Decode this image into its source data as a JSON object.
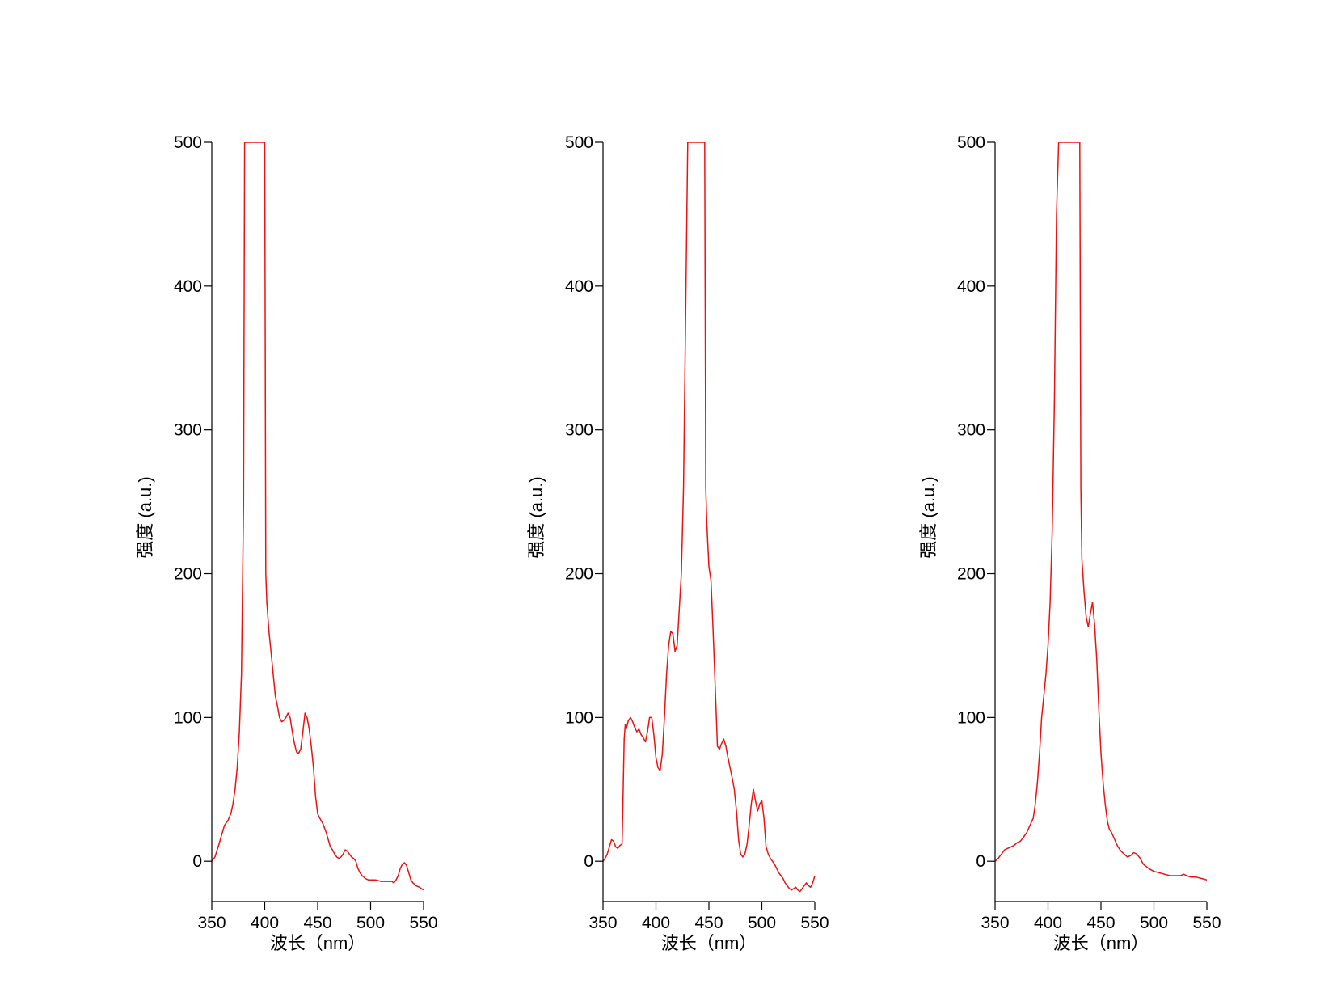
{
  "chart_data": [
    {
      "type": "line",
      "xlabel": "波长（nm）",
      "ylabel": "强度 (a.u.)",
      "xlim": [
        350,
        550
      ],
      "ylim": [
        -28,
        500
      ],
      "xticks": [
        350,
        400,
        450,
        500,
        550
      ],
      "yticks": [
        0,
        100,
        200,
        300,
        400,
        500
      ],
      "grid": false,
      "colors": {
        "line": "#ee1111"
      },
      "series": [
        {
          "x": [
            350,
            353,
            356,
            358,
            360,
            362,
            365,
            368,
            370,
            372,
            374,
            376,
            378,
            380,
            381,
            382,
            384,
            386,
            388,
            390,
            392,
            394,
            396,
            398,
            400,
            401,
            402,
            404,
            406,
            408,
            410,
            412,
            414,
            416,
            418,
            420,
            422,
            424,
            426,
            428,
            430,
            432,
            434,
            436,
            438,
            440,
            442,
            444,
            446,
            448,
            450,
            452,
            455,
            458,
            460,
            462,
            464,
            466,
            468,
            470,
            472,
            474,
            476,
            478,
            480,
            482,
            484,
            486,
            488,
            490,
            492,
            495,
            498,
            500,
            505,
            510,
            515,
            520,
            522,
            524,
            526,
            528,
            530,
            532,
            534,
            536,
            538,
            540,
            543,
            546,
            550
          ],
          "y": [
            0,
            3,
            10,
            15,
            20,
            25,
            28,
            33,
            40,
            50,
            65,
            90,
            130,
            250,
            500,
            500,
            500,
            500,
            500,
            500,
            500,
            500,
            500,
            500,
            500,
            200,
            180,
            160,
            145,
            130,
            115,
            108,
            100,
            97,
            98,
            100,
            103,
            100,
            90,
            82,
            76,
            75,
            78,
            90,
            103,
            100,
            92,
            80,
            65,
            45,
            33,
            30,
            26,
            20,
            15,
            10,
            8,
            5,
            3,
            2,
            3,
            5,
            8,
            7,
            5,
            3,
            2,
            0,
            -5,
            -8,
            -10,
            -12,
            -13,
            -13,
            -13,
            -14,
            -14,
            -14,
            -15,
            -13,
            -10,
            -5,
            -2,
            -1,
            -3,
            -8,
            -13,
            -15,
            -17,
            -18,
            -20
          ]
        }
      ]
    },
    {
      "type": "line",
      "xlabel": "波长（nm）",
      "ylabel": "强度 (a.u.)",
      "xlim": [
        350,
        550
      ],
      "ylim": [
        -28,
        500
      ],
      "xticks": [
        350,
        400,
        450,
        500,
        550
      ],
      "yticks": [
        0,
        100,
        200,
        300,
        400,
        500
      ],
      "grid": false,
      "colors": {
        "line": "#ee1111"
      },
      "series": [
        {
          "x": [
            350,
            352,
            354,
            356,
            358,
            360,
            362,
            364,
            366,
            368,
            370,
            371,
            372,
            374,
            376,
            378,
            380,
            382,
            384,
            386,
            388,
            390,
            392,
            394,
            396,
            398,
            400,
            402,
            404,
            406,
            408,
            410,
            412,
            414,
            416,
            418,
            420,
            422,
            424,
            426,
            428,
            430,
            431,
            432,
            434,
            436,
            438,
            440,
            442,
            444,
            446,
            447,
            448,
            450,
            452,
            454,
            456,
            458,
            460,
            462,
            464,
            466,
            468,
            470,
            472,
            474,
            476,
            478,
            480,
            482,
            484,
            486,
            488,
            490,
            492,
            494,
            496,
            498,
            500,
            502,
            504,
            506,
            508,
            510,
            512,
            514,
            516,
            518,
            520,
            522,
            524,
            526,
            528,
            530,
            532,
            534,
            536,
            538,
            540,
            542,
            544,
            546,
            548,
            550
          ],
          "y": [
            0,
            2,
            5,
            10,
            15,
            14,
            10,
            9,
            11,
            12,
            85,
            95,
            92,
            98,
            100,
            97,
            93,
            90,
            92,
            88,
            86,
            83,
            90,
            100,
            100,
            88,
            72,
            65,
            63,
            75,
            100,
            130,
            150,
            160,
            158,
            146,
            150,
            175,
            200,
            260,
            380,
            500,
            500,
            500,
            500,
            500,
            500,
            500,
            500,
            500,
            500,
            260,
            235,
            205,
            195,
            160,
            120,
            80,
            78,
            82,
            85,
            80,
            72,
            65,
            58,
            50,
            35,
            15,
            5,
            3,
            5,
            12,
            25,
            40,
            50,
            42,
            35,
            40,
            42,
            30,
            10,
            5,
            2,
            0,
            -2,
            -5,
            -8,
            -10,
            -12,
            -15,
            -17,
            -19,
            -20,
            -19,
            -18,
            -20,
            -21,
            -19,
            -17,
            -15,
            -17,
            -18,
            -15,
            -10
          ]
        }
      ]
    },
    {
      "type": "line",
      "xlabel": "波长（nm）",
      "ylabel": "强度 (a.u.)",
      "xlim": [
        350,
        550
      ],
      "ylim": [
        -28,
        500
      ],
      "xticks": [
        350,
        400,
        450,
        500,
        550
      ],
      "yticks": [
        0,
        100,
        200,
        300,
        400,
        500
      ],
      "grid": false,
      "colors": {
        "line": "#ee1111"
      },
      "series": [
        {
          "x": [
            350,
            353,
            356,
            359,
            362,
            365,
            368,
            371,
            374,
            377,
            380,
            383,
            386,
            388,
            390,
            392,
            394,
            396,
            398,
            400,
            402,
            404,
            406,
            408,
            410,
            412,
            414,
            416,
            418,
            420,
            422,
            424,
            426,
            428,
            430,
            431,
            432,
            434,
            436,
            438,
            440,
            442,
            444,
            446,
            448,
            450,
            452,
            454,
            456,
            458,
            460,
            463,
            466,
            469,
            472,
            475,
            478,
            481,
            484,
            487,
            490,
            495,
            500,
            505,
            510,
            515,
            520,
            525,
            528,
            531,
            535,
            540,
            545,
            550
          ],
          "y": [
            0,
            2,
            5,
            8,
            9,
            10,
            11,
            13,
            14,
            17,
            20,
            25,
            30,
            40,
            55,
            75,
            100,
            115,
            130,
            150,
            180,
            230,
            320,
            450,
            500,
            500,
            500,
            500,
            500,
            500,
            500,
            500,
            500,
            500,
            500,
            260,
            210,
            188,
            170,
            163,
            172,
            180,
            165,
            140,
            105,
            75,
            55,
            40,
            28,
            22,
            20,
            15,
            10,
            7,
            5,
            3,
            4,
            6,
            5,
            2,
            -2,
            -5,
            -7,
            -8,
            -9,
            -10,
            -10,
            -10,
            -9,
            -10,
            -11,
            -11,
            -12,
            -13
          ]
        }
      ]
    }
  ]
}
